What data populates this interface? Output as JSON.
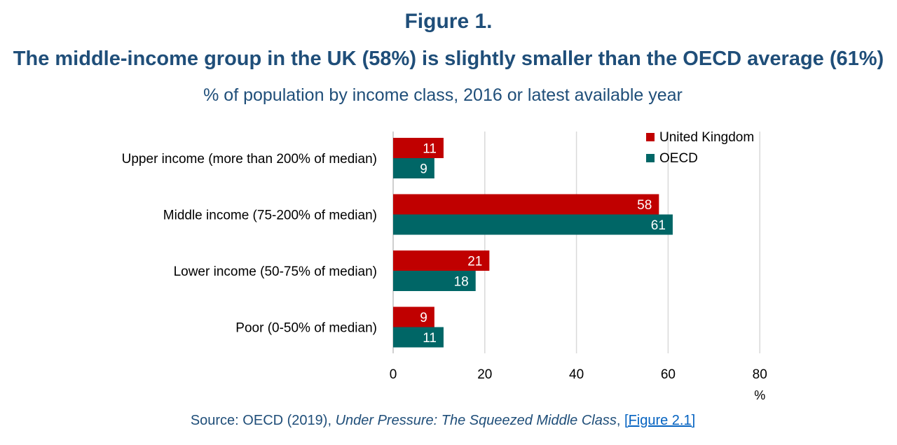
{
  "figure_number": "Figure 1.",
  "title": "The middle-income group in the UK (58%) is slightly smaller than the OECD average (61%)",
  "subtitle": "% of population by income class, 2016 or latest available year",
  "source": {
    "prefix": "Source: OECD (2019), ",
    "publication": "Under Pressure: The Squeezed Middle Class",
    "separator": ", ",
    "link_open": "[",
    "link_text": "Figure 2.1",
    "link_close": "]"
  },
  "colors": {
    "united_kingdom": "#c00000",
    "oecd": "#006666",
    "heading": "#1f4e79",
    "grid": "#d9d9d9"
  },
  "chart_data": {
    "type": "bar",
    "orientation": "horizontal",
    "categories": [
      "Upper income (more than 200% of median)",
      "Middle income (75-200% of median)",
      "Lower income (50-75% of median)",
      "Poor (0-50% of median)"
    ],
    "series": [
      {
        "name": "United Kingdom",
        "values": [
          11,
          58,
          21,
          9
        ]
      },
      {
        "name": "OECD",
        "values": [
          9,
          61,
          18,
          11
        ]
      }
    ],
    "xlabel": "%",
    "ylabel": "",
    "xlim": [
      0,
      80
    ],
    "xticks": [
      0,
      20,
      40,
      60,
      80
    ],
    "grid": "vertical",
    "legend_position": "top-right",
    "data_labels": true
  }
}
